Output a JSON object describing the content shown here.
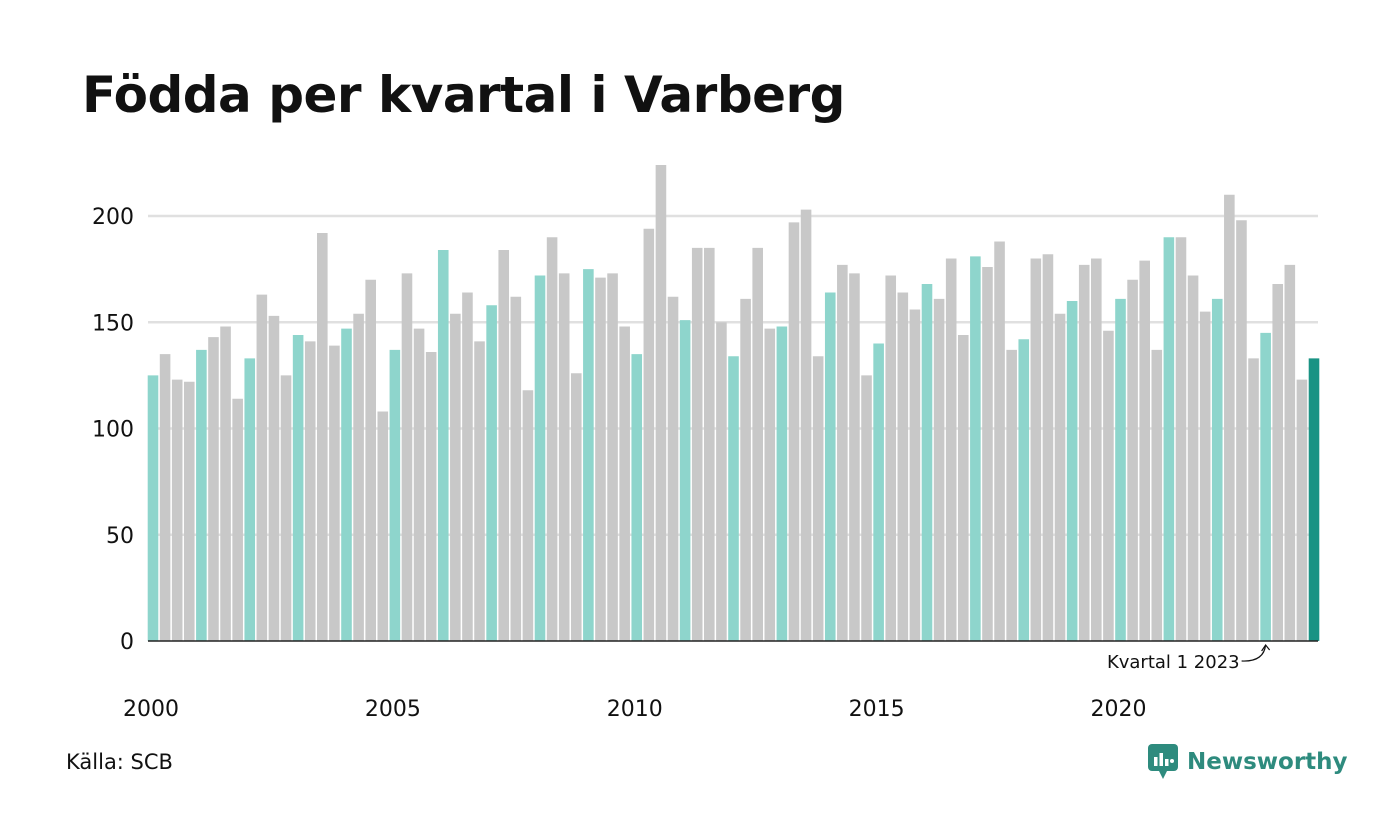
{
  "chart_data": {
    "type": "bar",
    "title": "Födda per kvartal i Varberg",
    "xlabel": "",
    "ylabel": "",
    "ylim": [
      0,
      225
    ],
    "grid": true,
    "y_ticks": [
      0,
      50,
      100,
      150,
      200
    ],
    "x_ticks": [
      {
        "label": "2000",
        "year": 2000
      },
      {
        "label": "2005",
        "year": 2005
      },
      {
        "label": "2010",
        "year": 2010
      },
      {
        "label": "2015",
        "year": 2015
      },
      {
        "label": "2020",
        "year": 2020
      }
    ],
    "start_year": 2000,
    "colors": {
      "q1": "#8ed5cc",
      "other": "#c8c8c8",
      "latest": "#1a9384",
      "grid": "#e0e0e0",
      "axis": "#222222"
    },
    "values": [
      125,
      135,
      123,
      122,
      137,
      143,
      148,
      114,
      133,
      163,
      153,
      125,
      144,
      141,
      192,
      139,
      147,
      154,
      170,
      108,
      137,
      173,
      147,
      136,
      184,
      154,
      164,
      141,
      158,
      184,
      162,
      118,
      172,
      190,
      173,
      126,
      175,
      171,
      173,
      148,
      135,
      194,
      224,
      162,
      151,
      185,
      185,
      150,
      134,
      161,
      185,
      147,
      148,
      197,
      203,
      134,
      164,
      177,
      173,
      125,
      140,
      172,
      164,
      156,
      168,
      161,
      180,
      144,
      181,
      176,
      188,
      137,
      142,
      180,
      182,
      154,
      160,
      177,
      180,
      146,
      161,
      170,
      179,
      137,
      190,
      190,
      172,
      155,
      161,
      210,
      198,
      133,
      145,
      168,
      177,
      123,
      133
    ],
    "annotation": {
      "text": "Kvartal 1 2023",
      "target_index": 92
    }
  },
  "footer": {
    "source": "Källa: SCB",
    "brand": "Newsworthy",
    "brand_icon": "newsworthy-logo-icon",
    "brand_color": "#2e8b7e"
  }
}
